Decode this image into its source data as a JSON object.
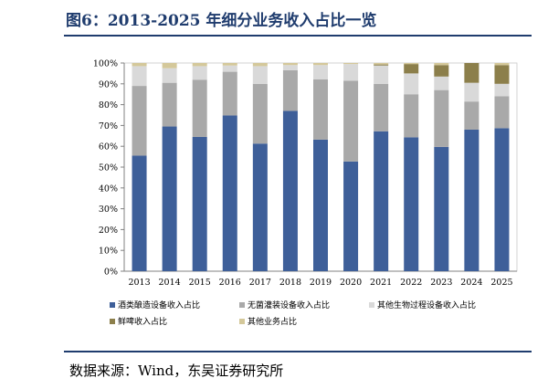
{
  "title": "图6：2013-2025 年细分业务收入占比一览",
  "source": "数据来源：Wind，东吴证券研究所",
  "chart_data": {
    "type": "bar",
    "stacked": true,
    "categories": [
      "2013",
      "2014",
      "2015",
      "2016",
      "2017",
      "2018",
      "2019",
      "2020",
      "2021",
      "2022",
      "2023",
      "2024",
      "2025"
    ],
    "y_ticks": [
      "0%",
      "10%",
      "20%",
      "30%",
      "40%",
      "50%",
      "60%",
      "70%",
      "80%",
      "90%",
      "100%"
    ],
    "ylim": [
      0,
      100
    ],
    "legend_position": "bottom",
    "series": [
      {
        "name": "酒类酿造设备收入占比",
        "color": "#3e5f99",
        "values": [
          55.5,
          69.5,
          64.5,
          74.8,
          61.3,
          77.0,
          63.2,
          52.7,
          67.2,
          64.3,
          59.7,
          68.0,
          68.7
        ]
      },
      {
        "name": "无菌灌装设备收入占比",
        "color": "#a9a9a9",
        "values": [
          33.5,
          21.0,
          27.5,
          21.0,
          28.7,
          19.5,
          29.0,
          38.8,
          22.8,
          20.7,
          27.3,
          13.5,
          15.3
        ]
      },
      {
        "name": "其他生物过程设备收入占比",
        "color": "#d9d9d9",
        "values": [
          9.5,
          7.0,
          6.5,
          3.0,
          8.5,
          2.5,
          6.8,
          8.0,
          8.8,
          10.0,
          6.5,
          9.0,
          6.0
        ]
      },
      {
        "name": "鲜啤收入占比",
        "color": "#8c7f4b",
        "values": [
          0,
          0,
          0,
          0,
          0,
          0,
          0,
          0,
          0.5,
          4.5,
          5.5,
          9.5,
          9.0
        ]
      },
      {
        "name": "其他业务占比",
        "color": "#d4c89a",
        "values": [
          1.5,
          2.5,
          1.5,
          1.2,
          1.5,
          1.0,
          1.0,
          0.5,
          0.7,
          0.5,
          1.0,
          0,
          1.0
        ]
      }
    ]
  }
}
